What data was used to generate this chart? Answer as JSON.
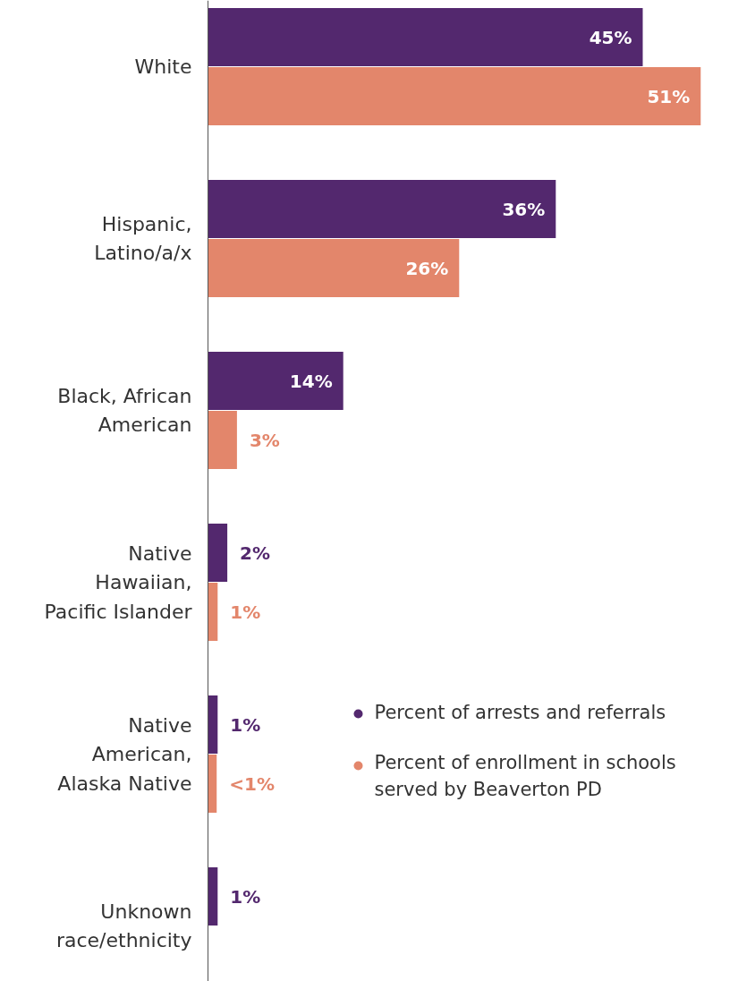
{
  "chart_data": {
    "type": "bar",
    "orientation": "horizontal",
    "categories": [
      "White",
      "Hispanic,\nLatino/a/x",
      "Black, African\nAmerican",
      "Native\nHawaiian,\nPacific Islander",
      "Native\nAmerican,\nAlaska Native",
      "Unknown\nrace/ethnicity"
    ],
    "series": [
      {
        "name": "Percent of arrests and referrals",
        "color": "#53286e",
        "values": [
          45,
          36,
          14,
          2,
          1,
          1
        ],
        "value_labels": [
          "45%",
          "36%",
          "14%",
          "2%",
          "1%",
          "1%"
        ]
      },
      {
        "name": "Percent of enrollment in schools served by Beaverton PD",
        "color": "#e3866b",
        "values": [
          51,
          26,
          3,
          1,
          0.9,
          null
        ],
        "value_labels": [
          "51%",
          "26%",
          "3%",
          "1%",
          "<1%",
          null
        ]
      }
    ],
    "legend": "right"
  }
}
